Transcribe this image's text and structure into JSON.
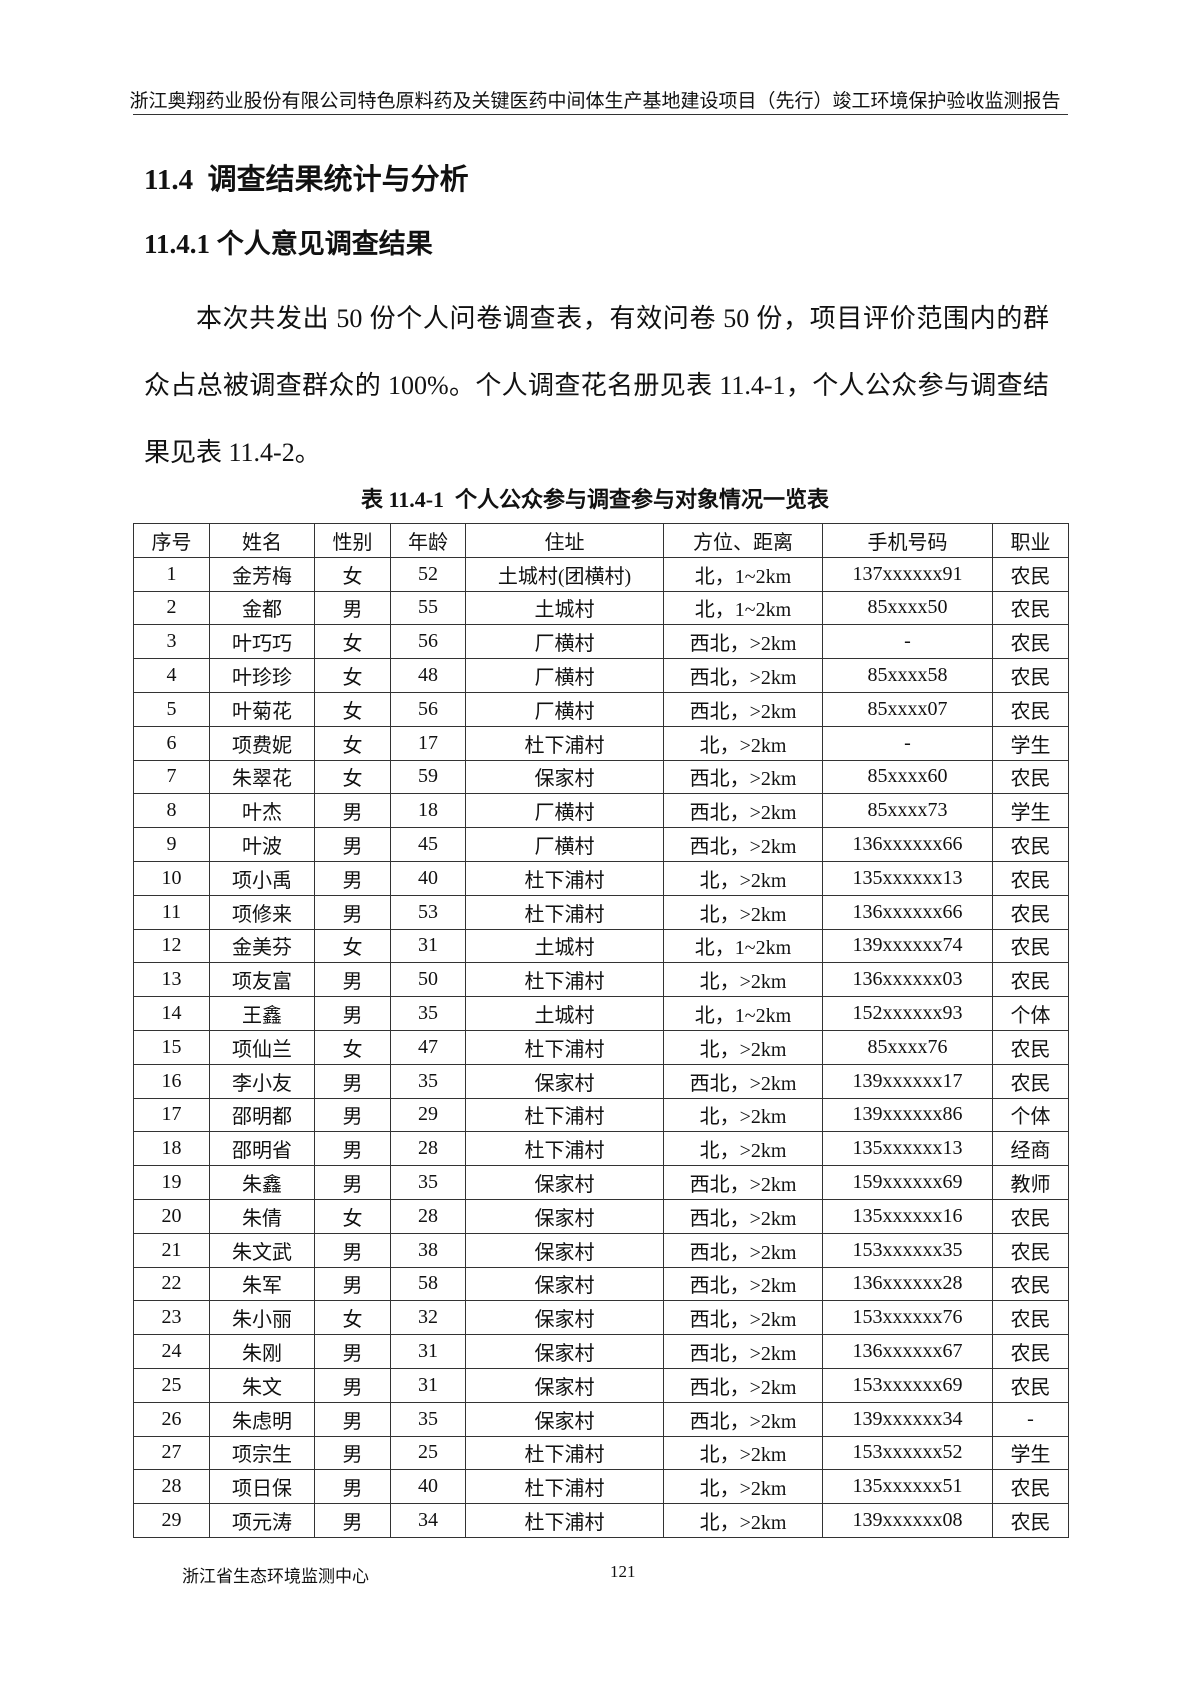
{
  "header": {
    "title": "浙江奥翔药业股份有限公司特色原料药及关键医药中间体生产基地建设项目（先行）竣工环境保护验收监测报告"
  },
  "section": {
    "title": "11.4  调查结果统计与分析"
  },
  "subsection": {
    "title": "11.4.1 个人意见调查结果"
  },
  "paragraph": "本次共发出 50 份个人问卷调查表，有效问卷 50 份，项目评价范围内的群众占总被调查群众的 100%。个人调查花名册见表 11.4-1，个人公众参与调查结果见表 11.4-2。",
  "table": {
    "caption": "表 11.4-1  个人公众参与调查参与对象情况一览表",
    "columns": [
      "序号",
      "姓名",
      "性别",
      "年龄",
      "住址",
      "方位、距离",
      "手机号码",
      "职业"
    ],
    "rows": [
      [
        "1",
        "金芳梅",
        "女",
        "52",
        "土城村(团横村)",
        "北，1~2km",
        "137xxxxxx91",
        "农民"
      ],
      [
        "2",
        "金都",
        "男",
        "55",
        "土城村",
        "北，1~2km",
        "85xxxx50",
        "农民"
      ],
      [
        "3",
        "叶巧巧",
        "女",
        "56",
        "厂横村",
        "西北，>2km",
        "-",
        "农民"
      ],
      [
        "4",
        "叶珍珍",
        "女",
        "48",
        "厂横村",
        "西北，>2km",
        "85xxxx58",
        "农民"
      ],
      [
        "5",
        "叶菊花",
        "女",
        "56",
        "厂横村",
        "西北，>2km",
        "85xxxx07",
        "农民"
      ],
      [
        "6",
        "项费妮",
        "女",
        "17",
        "杜下浦村",
        "北，>2km",
        "-",
        "学生"
      ],
      [
        "7",
        "朱翠花",
        "女",
        "59",
        "保家村",
        "西北，>2km",
        "85xxxx60",
        "农民"
      ],
      [
        "8",
        "叶杰",
        "男",
        "18",
        "厂横村",
        "西北，>2km",
        "85xxxx73",
        "学生"
      ],
      [
        "9",
        "叶波",
        "男",
        "45",
        "厂横村",
        "西北，>2km",
        "136xxxxxx66",
        "农民"
      ],
      [
        "10",
        "项小禹",
        "男",
        "40",
        "杜下浦村",
        "北，>2km",
        "135xxxxxx13",
        "农民"
      ],
      [
        "11",
        "项修来",
        "男",
        "53",
        "杜下浦村",
        "北，>2km",
        "136xxxxxx66",
        "农民"
      ],
      [
        "12",
        "金美芬",
        "女",
        "31",
        "土城村",
        "北，1~2km",
        "139xxxxxx74",
        "农民"
      ],
      [
        "13",
        "项友富",
        "男",
        "50",
        "杜下浦村",
        "北，>2km",
        "136xxxxxx03",
        "农民"
      ],
      [
        "14",
        "王鑫",
        "男",
        "35",
        "土城村",
        "北，1~2km",
        "152xxxxxx93",
        "个体"
      ],
      [
        "15",
        "项仙兰",
        "女",
        "47",
        "杜下浦村",
        "北，>2km",
        "85xxxx76",
        "农民"
      ],
      [
        "16",
        "李小友",
        "男",
        "35",
        "保家村",
        "西北，>2km",
        "139xxxxxx17",
        "农民"
      ],
      [
        "17",
        "邵明都",
        "男",
        "29",
        "杜下浦村",
        "北，>2km",
        "139xxxxxx86",
        "个体"
      ],
      [
        "18",
        "邵明省",
        "男",
        "28",
        "杜下浦村",
        "北，>2km",
        "135xxxxxx13",
        "经商"
      ],
      [
        "19",
        "朱鑫",
        "男",
        "35",
        "保家村",
        "西北，>2km",
        "159xxxxxx69",
        "教师"
      ],
      [
        "20",
        "朱倩",
        "女",
        "28",
        "保家村",
        "西北，>2km",
        "135xxxxxx16",
        "农民"
      ],
      [
        "21",
        "朱文武",
        "男",
        "38",
        "保家村",
        "西北，>2km",
        "153xxxxxx35",
        "农民"
      ],
      [
        "22",
        "朱军",
        "男",
        "58",
        "保家村",
        "西北，>2km",
        "136xxxxxx28",
        "农民"
      ],
      [
        "23",
        "朱小丽",
        "女",
        "32",
        "保家村",
        "西北，>2km",
        "153xxxxxx76",
        "农民"
      ],
      [
        "24",
        "朱刚",
        "男",
        "31",
        "保家村",
        "西北，>2km",
        "136xxxxxx67",
        "农民"
      ],
      [
        "25",
        "朱文",
        "男",
        "31",
        "保家村",
        "西北，>2km",
        "153xxxxxx69",
        "农民"
      ],
      [
        "26",
        "朱虑明",
        "男",
        "35",
        "保家村",
        "西北，>2km",
        "139xxxxxx34",
        "-"
      ],
      [
        "27",
        "项宗生",
        "男",
        "25",
        "杜下浦村",
        "北，>2km",
        "153xxxxxx52",
        "学生"
      ],
      [
        "28",
        "项日保",
        "男",
        "40",
        "杜下浦村",
        "北，>2km",
        "135xxxxxx51",
        "农民"
      ],
      [
        "29",
        "项元涛",
        "男",
        "34",
        "杜下浦村",
        "北，>2km",
        "139xxxxxx08",
        "农民"
      ]
    ]
  },
  "footer": {
    "organization": "浙江省生态环境监测中心",
    "page_number": "121"
  }
}
